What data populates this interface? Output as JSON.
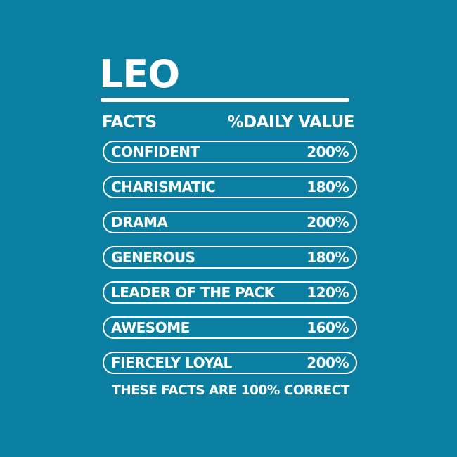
{
  "title": "LEO",
  "header": {
    "left": "FACTS",
    "right": "%DAILY VALUE"
  },
  "facts": [
    {
      "label": "CONFIDENT",
      "value": "200%"
    },
    {
      "label": "CHARISMATIC",
      "value": "180%"
    },
    {
      "label": "DRAMA",
      "value": "200%"
    },
    {
      "label": "GENEROUS",
      "value": "180%"
    },
    {
      "label": "LEADER OF THE PACK",
      "value": "120%"
    },
    {
      "label": "AWESOME",
      "value": "160%"
    },
    {
      "label": "FIERCELY LOYAL",
      "value": "200%"
    }
  ],
  "footer": "THESE FACTS ARE 100% CORRECT",
  "colors": {
    "background": "#0a7fa2",
    "foreground": "#ffffff"
  }
}
